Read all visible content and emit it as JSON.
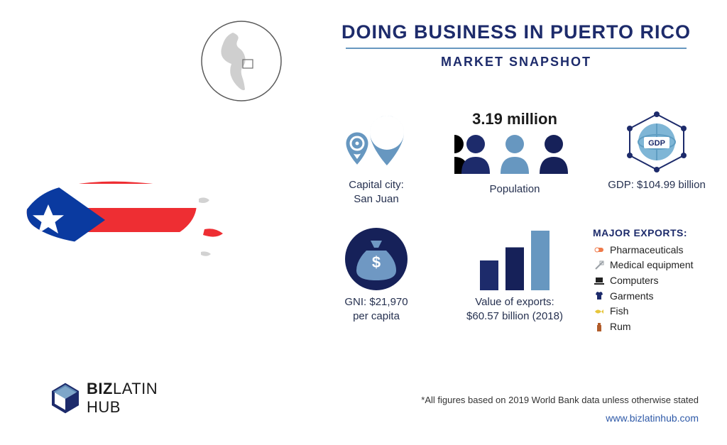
{
  "colors": {
    "navy": "#1d2b6b",
    "mid_blue": "#6797c0",
    "dark_navy": "#162159",
    "flag_red": "#ee2e33",
    "flag_blue": "#0a3aa0",
    "accent_link": "#2f5aa8",
    "gray": "#8a8a8a",
    "text": "#263150"
  },
  "title": "DOING BUSINESS IN PUERTO RICO",
  "subtitle": "MARKET SNAPSHOT",
  "capital": {
    "label": "Capital city:",
    "value": "San Juan"
  },
  "population": {
    "value": "3.19 million",
    "label": "Population"
  },
  "gdp": {
    "label": "GDP: $104.99 billion",
    "badge": "GDP"
  },
  "gni": {
    "label": "GNI: $21,970",
    "sub": "per capita"
  },
  "exports_value": {
    "label": "Value of exports:",
    "sub": "$60.57 billion (2018)",
    "bars": [
      50,
      72,
      100
    ],
    "bar_colors": [
      "#1d2b6b",
      "#162159",
      "#6797c0"
    ]
  },
  "exports": {
    "title": "MAJOR EXPORTS:",
    "items": [
      {
        "icon": "pill",
        "label": "Pharmaceuticals",
        "color": "#ef7a4a"
      },
      {
        "icon": "syringe",
        "label": "Medical equipment",
        "color": "#9aa0a6"
      },
      {
        "icon": "laptop",
        "label": "Computers",
        "color": "#222222"
      },
      {
        "icon": "shirt",
        "label": "Garments",
        "color": "#1d2b6b"
      },
      {
        "icon": "fish",
        "label": "Fish",
        "color": "#e7c63b"
      },
      {
        "icon": "bottle",
        "label": "Rum",
        "color": "#b25d2b"
      }
    ]
  },
  "logo": {
    "line1": "BIZ",
    "line2": "LATIN",
    "line3": "HUB"
  },
  "footnote": "*All figures based on 2019 World Bank data unless otherwise stated",
  "url": "www.bizlatinhub.com"
}
